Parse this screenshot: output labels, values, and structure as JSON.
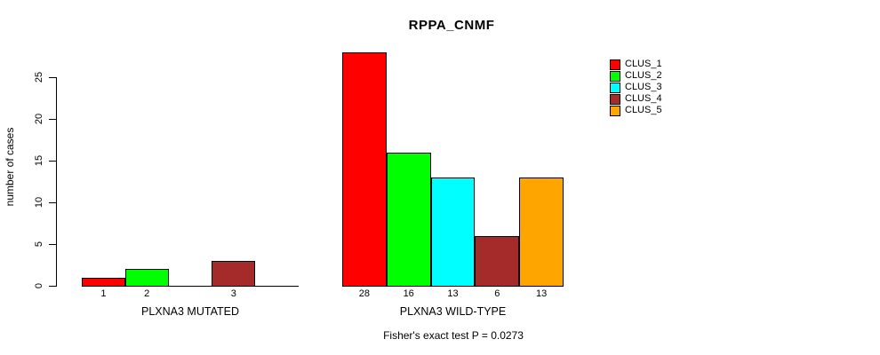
{
  "page": {
    "background": "#ffffff",
    "text_color": "#000000"
  },
  "chart_data": {
    "type": "bar",
    "title": "RPPA_CNMF",
    "ylabel": "number of cases",
    "xlabel": "",
    "ylim": [
      0,
      28
    ],
    "yticks": [
      0,
      5,
      10,
      15,
      20,
      25
    ],
    "grid": false,
    "legend_position": "top-right",
    "clusters": [
      "CLUS_1",
      "CLUS_2",
      "CLUS_3",
      "CLUS_4",
      "CLUS_5"
    ],
    "cluster_colors": [
      "#FF0000",
      "#00FF00",
      "#00FFFF",
      "#A52A2A",
      "#FFA500"
    ],
    "groups": [
      {
        "label": "PLXNA3 MUTATED",
        "values": [
          1,
          2,
          0,
          3,
          0
        ],
        "bar_labels": [
          "1",
          "2",
          "",
          "3",
          ""
        ]
      },
      {
        "label": "PLXNA3 WILD-TYPE",
        "values": [
          28,
          16,
          13,
          6,
          13
        ],
        "bar_labels": [
          "28",
          "16",
          "13",
          "6",
          "13"
        ]
      }
    ],
    "annotation": "Fisher's exact test P = 0.0273"
  }
}
